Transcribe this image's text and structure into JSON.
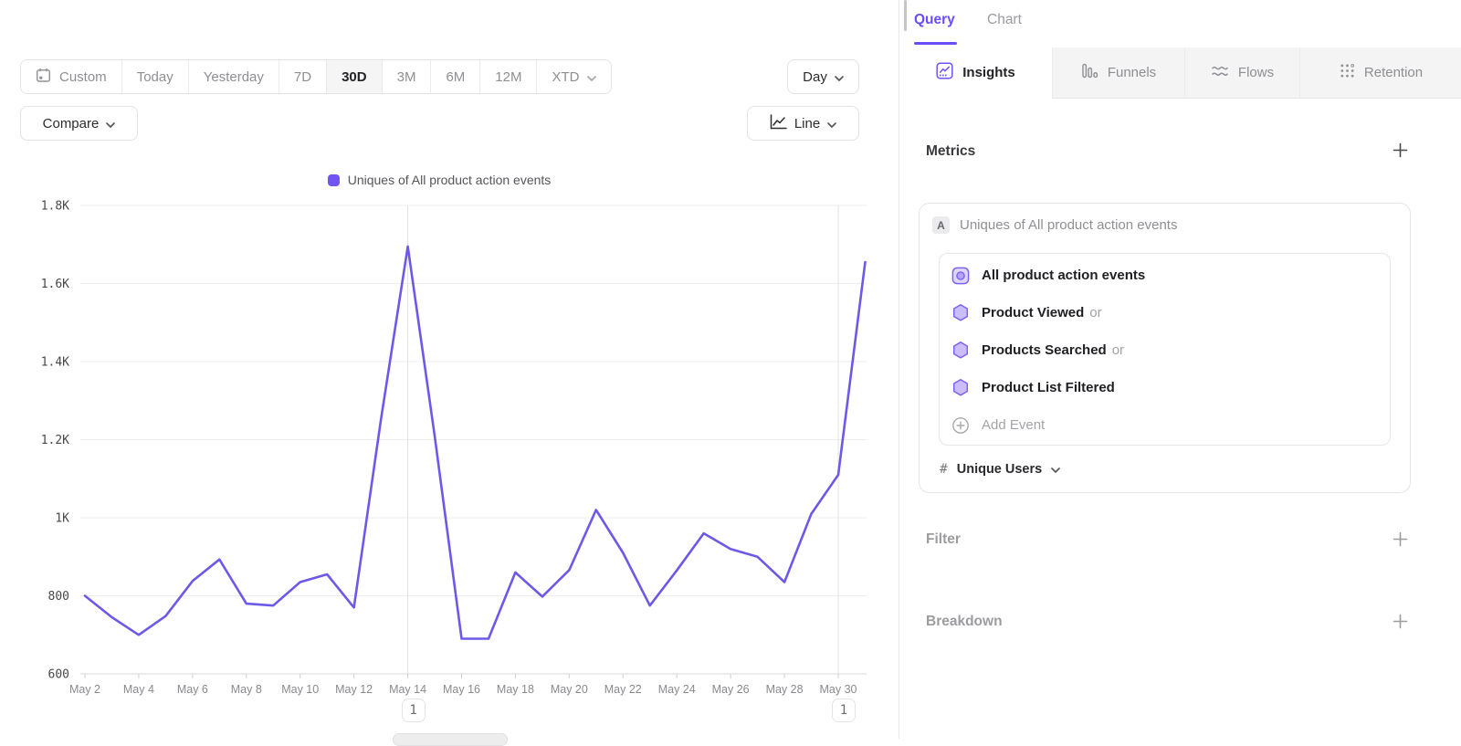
{
  "toolbar": {
    "date_ranges": [
      "Custom",
      "Today",
      "Yesterday",
      "7D",
      "30D",
      "3M",
      "6M",
      "12M",
      "XTD"
    ],
    "selected_range": "30D",
    "granularity_label": "Day",
    "compare_label": "Compare",
    "chart_type_label": "Line"
  },
  "legend": {
    "label": "Uniques of All product action events",
    "swatch_color": "#7253f3"
  },
  "chart_data": {
    "type": "line",
    "title": "Uniques of All product action events",
    "x": [
      "May 2",
      "May 3",
      "May 4",
      "May 5",
      "May 6",
      "May 7",
      "May 8",
      "May 9",
      "May 10",
      "May 11",
      "May 12",
      "May 13",
      "May 14",
      "May 15",
      "May 16",
      "May 17",
      "May 18",
      "May 19",
      "May 20",
      "May 21",
      "May 22",
      "May 23",
      "May 24",
      "May 25",
      "May 26",
      "May 27",
      "May 28",
      "May 29",
      "May 30",
      "May 31"
    ],
    "values": [
      800,
      745,
      700,
      748,
      838,
      893,
      780,
      775,
      835,
      855,
      770,
      1250,
      1695,
      1210,
      690,
      690,
      860,
      798,
      866,
      1020,
      910,
      775,
      865,
      960,
      920,
      900,
      835,
      1010,
      1110,
      1655
    ],
    "tick_every": 2,
    "ylim": [
      600,
      1800
    ],
    "yticks": [
      {
        "v": 600,
        "label": "600"
      },
      {
        "v": 800,
        "label": "800"
      },
      {
        "v": 1000,
        "label": "1K"
      },
      {
        "v": 1200,
        "label": "1.2K"
      },
      {
        "v": 1400,
        "label": "1.4K"
      },
      {
        "v": 1600,
        "label": "1.6K"
      },
      {
        "v": 1800,
        "label": "1.8K"
      }
    ],
    "line_color": "#6d59e8",
    "grid": true,
    "legend_position": "top",
    "annotations": [
      {
        "x_index": 12,
        "label": "1"
      },
      {
        "x_index": 28,
        "label": "1"
      }
    ]
  },
  "panel": {
    "tabs": [
      {
        "label": "Query",
        "active": true
      },
      {
        "label": "Chart",
        "active": false
      }
    ],
    "report_tabs": [
      {
        "label": "Insights",
        "icon": "insights-icon",
        "active": true
      },
      {
        "label": "Funnels",
        "icon": "funnels-icon",
        "active": false
      },
      {
        "label": "Flows",
        "icon": "flows-icon",
        "active": false
      },
      {
        "label": "Retention",
        "icon": "retention-icon",
        "active": false
      }
    ],
    "metrics": {
      "title": "Metrics",
      "series_badge": "A",
      "series_label": "Uniques of All product action events",
      "events": [
        {
          "name": "All product action events",
          "suffix": "",
          "icon": "custom-event-icon"
        },
        {
          "name": "Product Viewed",
          "suffix": "or",
          "icon": "hexagon-icon"
        },
        {
          "name": "Products Searched",
          "suffix": "or",
          "icon": "hexagon-icon"
        },
        {
          "name": "Product List Filtered",
          "suffix": "",
          "icon": "hexagon-icon"
        }
      ],
      "add_event_label": "Add Event",
      "aggregation": {
        "prefix": "#",
        "label": "Unique Users"
      }
    },
    "filter": {
      "title": "Filter"
    },
    "breakdown": {
      "title": "Breakdown"
    }
  },
  "colors": {
    "accent_purple": "#7253f3",
    "hexagon_fill": "#cabefa",
    "hexagon_stroke": "#7e62f1"
  }
}
